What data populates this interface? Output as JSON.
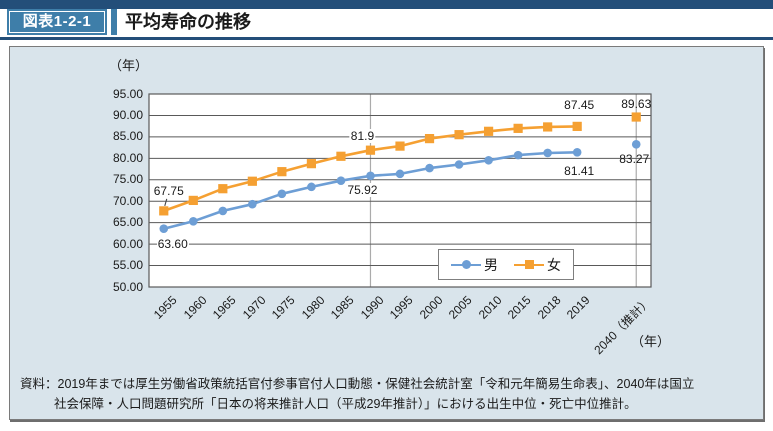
{
  "header": {
    "badge": "図表1-2-1",
    "title": "平均寿命の推移"
  },
  "chart_data": {
    "type": "line",
    "title": "平均寿命の推移",
    "y_unit": "（年）",
    "x_unit": "（年）",
    "ylim": [
      50,
      95
    ],
    "ytick_step": 5,
    "grid": "horizontal",
    "legend_position": "bottom-inside",
    "categories": [
      "1955",
      "1960",
      "1965",
      "1970",
      "1975",
      "1980",
      "1985",
      "1990",
      "1995",
      "2000",
      "2005",
      "2010",
      "2015",
      "2018",
      "2019",
      "2040（推計）"
    ],
    "series": [
      {
        "name": "男",
        "color": "#6D9ED5",
        "marker": "circle",
        "values": [
          63.6,
          65.32,
          67.74,
          69.31,
          71.73,
          73.35,
          74.78,
          75.92,
          76.38,
          77.72,
          78.56,
          79.55,
          80.75,
          81.25,
          81.41,
          83.27
        ]
      },
      {
        "name": "女",
        "color": "#F5A032",
        "marker": "square",
        "values": [
          67.75,
          70.19,
          72.92,
          74.66,
          76.89,
          78.76,
          80.48,
          81.9,
          82.85,
          84.6,
          85.52,
          86.3,
          86.99,
          87.32,
          87.45,
          89.63
        ]
      }
    ],
    "last_point_detached": true,
    "ref_vlines": [
      "1990",
      "2040（推計）"
    ],
    "annotations": [
      {
        "series": "男",
        "category": "1955",
        "text": "63.60"
      },
      {
        "series": "女",
        "category": "1955",
        "text": "67.75"
      },
      {
        "series": "女",
        "category": "1990",
        "text": "81.9"
      },
      {
        "series": "男",
        "category": "1990",
        "text": "75.92"
      },
      {
        "series": "女",
        "category": "2019",
        "text": "87.45"
      },
      {
        "series": "男",
        "category": "2019",
        "text": "81.41"
      },
      {
        "series": "女",
        "category": "2040（推計）",
        "text": "89.63"
      },
      {
        "series": "男",
        "category": "2040（推計）",
        "text": "83.27"
      }
    ]
  },
  "source": {
    "line1": "資料：2019年までは厚生労働省政策統括官付参事官付人口動態・保健社会統計室「令和元年簡易生命表」、2040年は国立",
    "line2": "社会保障・人口問題研究所「日本の将来推計人口（平成29年推計）」における出生中位・死亡中位推計。"
  }
}
